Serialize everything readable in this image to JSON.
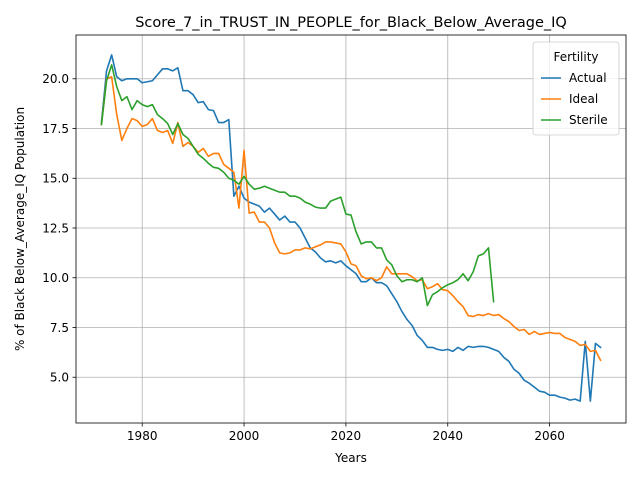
{
  "chart_data": {
    "type": "line",
    "title": "Score_7_in_TRUST_IN_PEOPLE_for_Black_Below_Average_IQ",
    "xlabel": "Years",
    "ylabel": "% of Black Below_Average_IQ Population",
    "xlim": [
      1967,
      2075
    ],
    "ylim": [
      2.7,
      22.2
    ],
    "xticks": [
      1980,
      2000,
      2020,
      2040,
      2060
    ],
    "yticks": [
      5.0,
      7.5,
      10.0,
      12.5,
      15.0,
      17.5,
      20.0
    ],
    "grid": true,
    "legend": {
      "title": "Fertility",
      "placement": "top-right"
    },
    "series": [
      {
        "name": "Actual",
        "color": "#1f77b4",
        "x": [
          1972,
          1973,
          1974,
          1975,
          1976,
          1977,
          1978,
          1979,
          1980,
          1981,
          1982,
          1983,
          1984,
          1985,
          1986,
          1987,
          1988,
          1989,
          1990,
          1991,
          1992,
          1993,
          1994,
          1995,
          1996,
          1997,
          1998,
          1999,
          2000,
          2001,
          2002,
          2003,
          2004,
          2005,
          2006,
          2007,
          2008,
          2009,
          2010,
          2011,
          2012,
          2013,
          2014,
          2015,
          2016,
          2017,
          2018,
          2019,
          2020,
          2021,
          2022,
          2023,
          2024,
          2025,
          2026,
          2027,
          2028,
          2029,
          2030,
          2031,
          2032,
          2033,
          2034,
          2035,
          2036,
          2037,
          2038,
          2039,
          2040,
          2041,
          2042,
          2043,
          2044,
          2045,
          2046,
          2047,
          2048,
          2049,
          2050,
          2051,
          2052,
          2053,
          2054,
          2055,
          2056,
          2057,
          2058,
          2059,
          2060,
          2061,
          2062,
          2063,
          2064,
          2065,
          2066,
          2067,
          2068,
          2069,
          2070
        ],
        "y": [
          17.8,
          20.4,
          21.2,
          20.1,
          19.9,
          20.0,
          20.0,
          20.0,
          19.8,
          19.85,
          19.9,
          20.2,
          20.5,
          20.5,
          20.4,
          20.55,
          19.4,
          19.4,
          19.2,
          18.8,
          18.85,
          18.45,
          18.4,
          17.8,
          17.8,
          17.95,
          14.1,
          14.6,
          14.0,
          13.8,
          13.7,
          13.6,
          13.3,
          13.5,
          13.2,
          12.9,
          13.1,
          12.8,
          12.8,
          12.5,
          12.0,
          11.5,
          11.3,
          11.0,
          10.8,
          10.85,
          10.75,
          10.85,
          10.6,
          10.4,
          10.2,
          9.8,
          9.8,
          10.0,
          9.75,
          9.75,
          9.6,
          9.2,
          8.8,
          8.3,
          7.9,
          7.6,
          7.1,
          6.85,
          6.5,
          6.5,
          6.4,
          6.35,
          6.4,
          6.3,
          6.5,
          6.35,
          6.55,
          6.5,
          6.55,
          6.55,
          6.5,
          6.4,
          6.3,
          6.0,
          5.8,
          5.4,
          5.2,
          4.85,
          4.7,
          4.5,
          4.3,
          4.25,
          4.1,
          4.1,
          4.0,
          3.95,
          3.85,
          3.9,
          3.8,
          6.8,
          3.8,
          6.7,
          6.5
        ]
      },
      {
        "name": "Ideal",
        "color": "#ff7f0e",
        "x": [
          1972,
          1973,
          1974,
          1975,
          1976,
          1977,
          1978,
          1979,
          1980,
          1981,
          1982,
          1983,
          1984,
          1985,
          1986,
          1987,
          1988,
          1989,
          1990,
          1991,
          1992,
          1993,
          1994,
          1995,
          1996,
          1997,
          1998,
          1999,
          2000,
          2001,
          2002,
          2003,
          2004,
          2005,
          2006,
          2007,
          2008,
          2009,
          2010,
          2011,
          2012,
          2013,
          2014,
          2015,
          2016,
          2017,
          2018,
          2019,
          2020,
          2021,
          2022,
          2023,
          2024,
          2025,
          2026,
          2027,
          2028,
          2029,
          2030,
          2031,
          2032,
          2033,
          2034,
          2035,
          2036,
          2037,
          2038,
          2039,
          2040,
          2041,
          2042,
          2043,
          2044,
          2045,
          2046,
          2047,
          2048,
          2049,
          2050,
          2051,
          2052,
          2053,
          2054,
          2055,
          2056,
          2057,
          2058,
          2059,
          2060,
          2061,
          2062,
          2063,
          2064,
          2065,
          2066,
          2067,
          2068,
          2069,
          2070
        ],
        "y": [
          17.7,
          20.0,
          20.1,
          18.2,
          16.9,
          17.5,
          18.0,
          17.9,
          17.6,
          17.7,
          18.0,
          17.4,
          17.3,
          17.4,
          16.75,
          17.8,
          16.6,
          16.8,
          16.6,
          16.3,
          16.5,
          16.1,
          16.25,
          16.25,
          15.7,
          15.5,
          15.3,
          13.5,
          16.4,
          13.25,
          13.3,
          12.8,
          12.8,
          12.5,
          11.75,
          11.25,
          11.2,
          11.25,
          11.4,
          11.4,
          11.5,
          11.45,
          11.55,
          11.65,
          11.8,
          11.8,
          11.75,
          11.7,
          11.3,
          10.7,
          10.6,
          10.1,
          9.95,
          10.0,
          9.85,
          10.0,
          10.55,
          10.2,
          10.2,
          10.2,
          10.2,
          10.05,
          9.85,
          9.9,
          9.45,
          9.55,
          9.7,
          9.4,
          9.35,
          9.1,
          8.8,
          8.55,
          8.1,
          8.05,
          8.15,
          8.1,
          8.2,
          8.1,
          8.15,
          7.95,
          7.8,
          7.55,
          7.35,
          7.4,
          7.15,
          7.3,
          7.15,
          7.2,
          7.25,
          7.2,
          7.2,
          7.0,
          6.9,
          6.8,
          6.6,
          6.65,
          6.3,
          6.35,
          5.85
        ]
      },
      {
        "name": "Sterile",
        "color": "#2ca02c",
        "x": [
          1972,
          1973,
          1974,
          1975,
          1976,
          1977,
          1978,
          1979,
          1980,
          1981,
          1982,
          1983,
          1984,
          1985,
          1986,
          1987,
          1988,
          1989,
          1990,
          1991,
          1992,
          1993,
          1994,
          1995,
          1996,
          1997,
          1998,
          1999,
          2000,
          2001,
          2002,
          2003,
          2004,
          2005,
          2006,
          2007,
          2008,
          2009,
          2010,
          2011,
          2012,
          2013,
          2014,
          2015,
          2016,
          2017,
          2018,
          2019,
          2020,
          2021,
          2022,
          2023,
          2024,
          2025,
          2026,
          2027,
          2028,
          2029,
          2030,
          2031,
          2032,
          2033,
          2034,
          2035,
          2036,
          2037,
          2038,
          2039,
          2040,
          2041,
          2042,
          2043,
          2044,
          2045,
          2046,
          2047,
          2048,
          2049
        ],
        "y": [
          17.7,
          19.9,
          20.7,
          19.6,
          18.9,
          19.1,
          18.45,
          18.9,
          18.7,
          18.6,
          18.7,
          18.2,
          18.0,
          17.75,
          17.2,
          17.75,
          17.2,
          17.0,
          16.6,
          16.2,
          16.0,
          15.75,
          15.55,
          15.5,
          15.3,
          15.0,
          14.9,
          14.7,
          15.1,
          14.7,
          14.45,
          14.5,
          14.6,
          14.5,
          14.4,
          14.3,
          14.3,
          14.1,
          14.1,
          14.0,
          13.8,
          13.7,
          13.55,
          13.5,
          13.5,
          13.85,
          13.95,
          14.05,
          13.2,
          13.15,
          12.3,
          11.7,
          11.8,
          11.8,
          11.5,
          11.5,
          10.9,
          10.65,
          10.1,
          9.8,
          9.9,
          9.9,
          9.8,
          10.0,
          8.6,
          9.15,
          9.3,
          9.5,
          9.65,
          9.75,
          9.9,
          10.2,
          9.85,
          10.3,
          11.1,
          11.2,
          11.5,
          8.8
        ]
      }
    ]
  }
}
